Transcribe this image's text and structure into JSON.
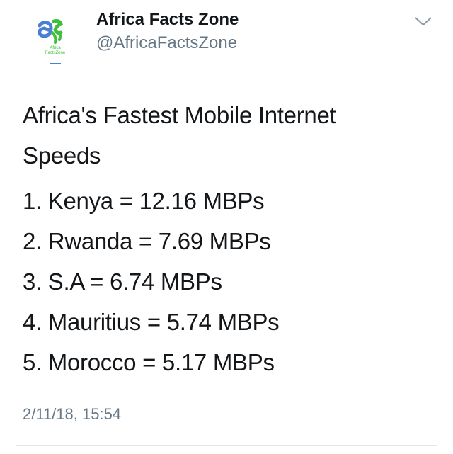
{
  "account": {
    "name": "Africa Facts Zone",
    "handle": "@AfricaFactsZone",
    "logo_text": "Africa FactsZone"
  },
  "tweet": {
    "title": "Africa's Fastest Mobile Internet Speeds",
    "lines": [
      "1. Kenya = 12.16 MBPs",
      "2. Rwanda = 7.69 MBPs",
      "3. S.A = 6.74 MBPs",
      "4. Mauritius = 5.74 MBPs",
      "5. Morocco = 5.17 MBPs"
    ],
    "timestamp": "2/11/18, 15:54"
  },
  "icons": {
    "menu": "chevron-down-icon",
    "avatar": "africa-facts-zone-logo"
  },
  "colors": {
    "text": "#14171a",
    "secondary": "#657786",
    "logo_blue": "#4a7fd4",
    "logo_green": "#3fbf3f"
  }
}
